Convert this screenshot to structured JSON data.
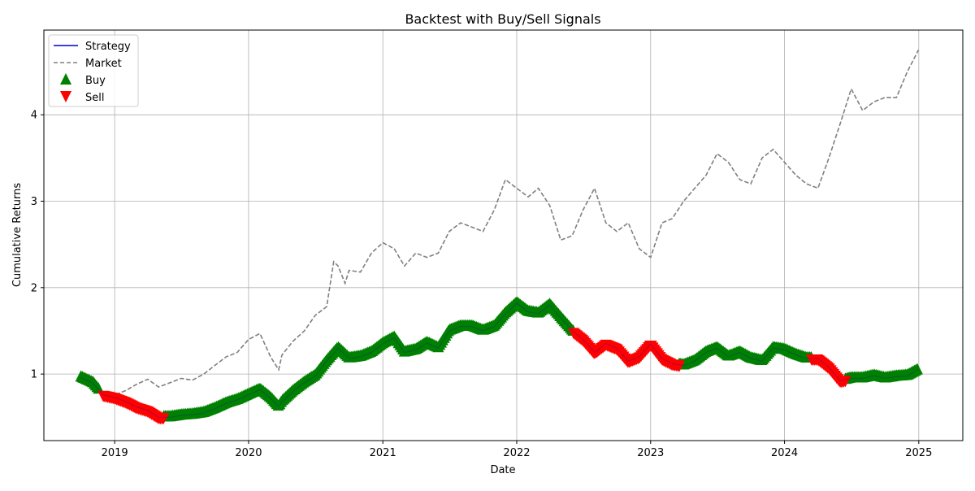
{
  "chart_data": {
    "type": "line",
    "title": "Backtest with Buy/Sell Signals",
    "xlabel": "Date",
    "ylabel": "Cumulative Returns",
    "xlim": [
      "2018-06-22",
      "2025-05-01"
    ],
    "ylim": [
      0.23,
      4.98
    ],
    "x_ticks": [
      "2019",
      "2020",
      "2021",
      "2022",
      "2023",
      "2024",
      "2025"
    ],
    "y_ticks": [
      1,
      2,
      3,
      4
    ],
    "grid": true,
    "legend_position": "top-left",
    "legend": [
      {
        "label": "Strategy",
        "style": "line",
        "color": "#0000cc"
      },
      {
        "label": "Market",
        "style": "dashed",
        "color": "#808080"
      },
      {
        "label": "Buy",
        "style": "marker-up",
        "color": "#008000"
      },
      {
        "label": "Sell",
        "style": "marker-down",
        "color": "#ff0000"
      }
    ],
    "colors": {
      "strategy": "#0000cc",
      "market": "#808080",
      "buy": "#008000",
      "sell": "#ff0000"
    },
    "series": [
      {
        "name": "Market",
        "x": [
          "2018-10-01",
          "2018-11-01",
          "2018-12-01",
          "2019-01-01",
          "2019-02-01",
          "2019-03-01",
          "2019-04-01",
          "2019-05-01",
          "2019-06-01",
          "2019-07-01",
          "2019-08-01",
          "2019-09-01",
          "2019-10-01",
          "2019-11-01",
          "2019-12-01",
          "2020-01-01",
          "2020-02-01",
          "2020-03-01",
          "2020-03-23",
          "2020-04-01",
          "2020-05-01",
          "2020-06-01",
          "2020-07-01",
          "2020-08-01",
          "2020-08-20",
          "2020-09-01",
          "2020-09-20",
          "2020-10-01",
          "2020-11-01",
          "2020-12-01",
          "2021-01-01",
          "2021-02-01",
          "2021-03-01",
          "2021-04-01",
          "2021-05-01",
          "2021-06-01",
          "2021-07-01",
          "2021-08-01",
          "2021-09-01",
          "2021-10-01",
          "2021-11-01",
          "2021-12-01",
          "2022-01-01",
          "2022-02-01",
          "2022-03-01",
          "2022-04-01",
          "2022-05-01",
          "2022-06-01",
          "2022-07-01",
          "2022-08-01",
          "2022-09-01",
          "2022-10-01",
          "2022-11-01",
          "2022-12-01",
          "2023-01-01",
          "2023-02-01",
          "2023-03-01",
          "2023-04-01",
          "2023-05-01",
          "2023-06-01",
          "2023-07-01",
          "2023-08-01",
          "2023-09-01",
          "2023-10-01",
          "2023-11-01",
          "2023-12-01",
          "2024-01-01",
          "2024-02-01",
          "2024-03-01",
          "2024-04-01",
          "2024-05-01",
          "2024-06-01",
          "2024-07-01",
          "2024-08-01",
          "2024-09-01",
          "2024-10-01",
          "2024-11-01",
          "2024-12-01",
          "2024-12-31"
        ],
        "values": [
          0.92,
          0.98,
          0.78,
          0.76,
          0.81,
          0.88,
          0.94,
          0.85,
          0.9,
          0.95,
          0.93,
          1.0,
          1.1,
          1.2,
          1.25,
          1.4,
          1.47,
          1.2,
          1.05,
          1.22,
          1.38,
          1.5,
          1.68,
          1.78,
          2.3,
          2.25,
          2.05,
          2.2,
          2.18,
          2.4,
          2.52,
          2.45,
          2.25,
          2.4,
          2.35,
          2.4,
          2.65,
          2.75,
          2.7,
          2.65,
          2.9,
          3.25,
          3.15,
          3.05,
          3.15,
          2.95,
          2.55,
          2.6,
          2.9,
          3.15,
          2.75,
          2.65,
          2.75,
          2.45,
          2.35,
          2.75,
          2.8,
          3.0,
          3.15,
          3.3,
          3.55,
          3.45,
          3.25,
          3.2,
          3.5,
          3.6,
          3.45,
          3.3,
          3.2,
          3.15,
          3.5,
          3.9,
          4.3,
          4.05,
          4.15,
          4.2,
          4.2,
          4.5,
          4.75
        ]
      },
      {
        "name": "Strategy",
        "x": [
          "2018-10-01",
          "2018-11-01",
          "2018-12-01",
          "2019-01-01",
          "2019-02-01",
          "2019-03-01",
          "2019-04-01",
          "2019-05-01",
          "2019-06-01",
          "2019-07-01",
          "2019-08-01",
          "2019-09-01",
          "2019-10-01",
          "2019-11-01",
          "2019-12-01",
          "2020-01-01",
          "2020-02-01",
          "2020-03-01",
          "2020-03-23",
          "2020-04-01",
          "2020-05-01",
          "2020-06-01",
          "2020-07-01",
          "2020-08-01",
          "2020-09-01",
          "2020-10-01",
          "2020-11-01",
          "2020-12-01",
          "2021-01-01",
          "2021-02-01",
          "2021-03-01",
          "2021-04-01",
          "2021-05-01",
          "2021-06-01",
          "2021-07-01",
          "2021-08-01",
          "2021-09-01",
          "2021-10-01",
          "2021-11-01",
          "2021-12-01",
          "2022-01-01",
          "2022-02-01",
          "2022-03-01",
          "2022-04-01",
          "2022-05-01",
          "2022-06-01",
          "2022-07-01",
          "2022-08-01",
          "2022-09-01",
          "2022-10-01",
          "2022-11-01",
          "2022-12-01",
          "2023-01-01",
          "2023-02-01",
          "2023-03-01",
          "2023-04-01",
          "2023-05-01",
          "2023-06-01",
          "2023-07-01",
          "2023-08-01",
          "2023-09-01",
          "2023-10-01",
          "2023-11-01",
          "2023-12-01",
          "2024-01-01",
          "2024-02-01",
          "2024-03-01",
          "2024-04-01",
          "2024-05-01",
          "2024-06-01",
          "2024-07-01",
          "2024-08-01",
          "2024-09-01",
          "2024-10-01",
          "2024-11-01",
          "2024-12-01",
          "2024-12-31"
        ],
        "values": [
          0.96,
          0.9,
          0.76,
          0.73,
          0.68,
          0.62,
          0.58,
          0.5,
          0.5,
          0.52,
          0.53,
          0.55,
          0.6,
          0.66,
          0.7,
          0.76,
          0.82,
          0.72,
          0.62,
          0.68,
          0.8,
          0.9,
          0.98,
          1.15,
          1.3,
          1.18,
          1.2,
          1.25,
          1.35,
          1.42,
          1.25,
          1.28,
          1.36,
          1.3,
          1.5,
          1.55,
          1.55,
          1.5,
          1.55,
          1.7,
          1.82,
          1.72,
          1.7,
          1.8,
          1.65,
          1.5,
          1.4,
          1.25,
          1.35,
          1.3,
          1.15,
          1.2,
          1.35,
          1.18,
          1.12,
          1.1,
          1.15,
          1.25,
          1.3,
          1.2,
          1.25,
          1.18,
          1.15,
          1.3,
          1.28,
          1.22,
          1.18,
          1.18,
          1.08,
          0.92,
          0.95,
          0.95,
          0.98,
          0.95,
          0.97,
          0.98,
          1.05
        ]
      }
    ],
    "signals": {
      "buy": [
        [
          "2018-10-01",
          "2018-11-20"
        ],
        [
          "2019-05-15",
          "2022-06-05"
        ],
        [
          "2023-03-20",
          "2024-03-15"
        ],
        [
          "2024-06-15",
          "2024-12-31"
        ]
      ],
      "sell": [
        [
          "2018-12-01",
          "2019-05-15"
        ],
        [
          "2022-06-05",
          "2023-03-20"
        ],
        [
          "2024-03-15",
          "2024-06-15"
        ]
      ]
    }
  }
}
